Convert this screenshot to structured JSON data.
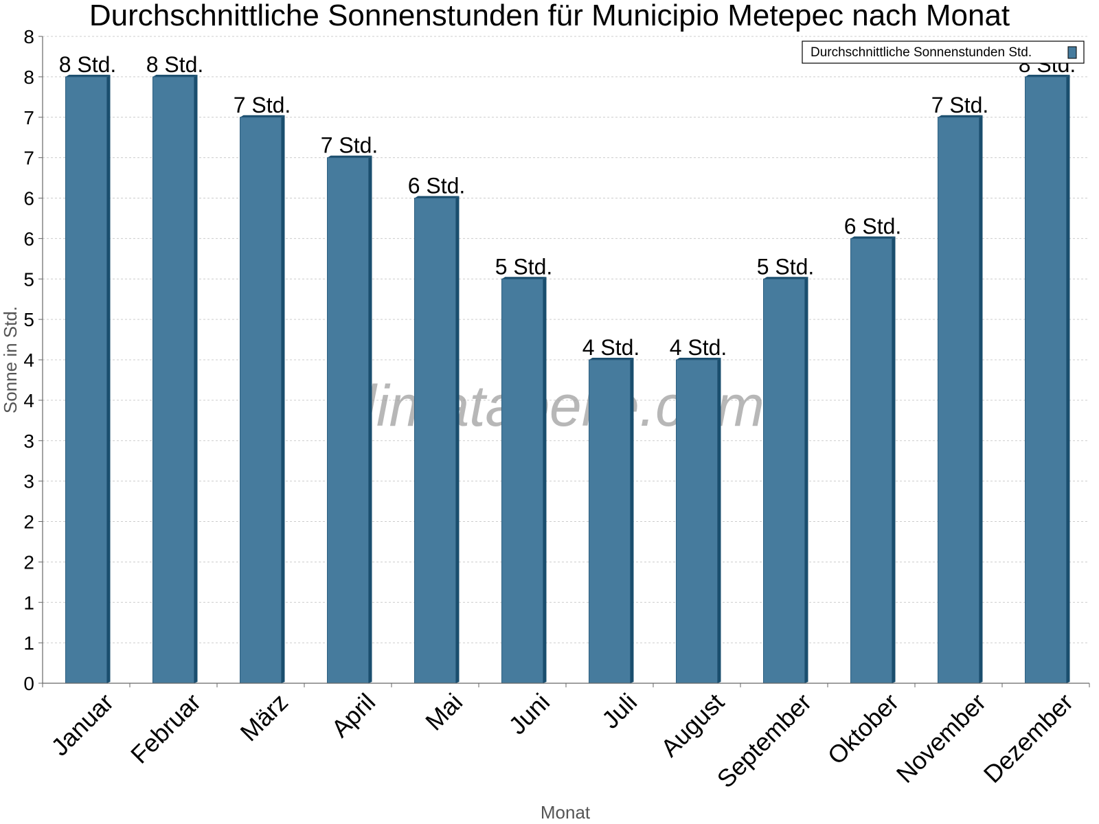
{
  "chart_data": {
    "type": "bar",
    "title": "Durchschnittliche Sonnenstunden für Municipio Metepec nach Monat",
    "xlabel": "Monat",
    "ylabel": "Sonne in Std.",
    "categories": [
      "Januar",
      "Februar",
      "März",
      "April",
      "Mai",
      "Juni",
      "Juli",
      "August",
      "September",
      "Oktober",
      "November",
      "Dezember"
    ],
    "series": [
      {
        "name": "Durchschnittliche Sonnenstunden Std.",
        "values": [
          7.5,
          7.5,
          7.0,
          6.5,
          6.0,
          5.0,
          4.0,
          4.0,
          5.0,
          5.5,
          7.0,
          7.5
        ]
      }
    ],
    "data_labels": [
      "8 Std.",
      "8 Std.",
      "7 Std.",
      "7 Std.",
      "6 Std.",
      "5 Std.",
      "4 Std.",
      "4 Std.",
      "5 Std.",
      "6 Std.",
      "7 Std.",
      "8 Std."
    ],
    "ylim": [
      0,
      8
    ],
    "y_ticks": [
      0,
      0.5,
      1,
      1.5,
      2,
      2.5,
      3,
      3.5,
      4,
      4.5,
      5,
      5.5,
      6,
      6.5,
      7,
      7.5,
      8
    ],
    "y_tick_labels": [
      "0",
      "1",
      "1",
      "2",
      "2",
      "3",
      "3",
      "4",
      "4",
      "5",
      "5",
      "6",
      "6",
      "7",
      "7",
      "8",
      "8"
    ],
    "grid": true,
    "legend_position": "top-right",
    "watermark": "klimatabelle.com",
    "colors": {
      "bar": "#467b9d",
      "bar_side": "#1a4e6e",
      "bar_top": "#2d5f80",
      "grid": "#cccccc",
      "axis": "#666666"
    }
  }
}
